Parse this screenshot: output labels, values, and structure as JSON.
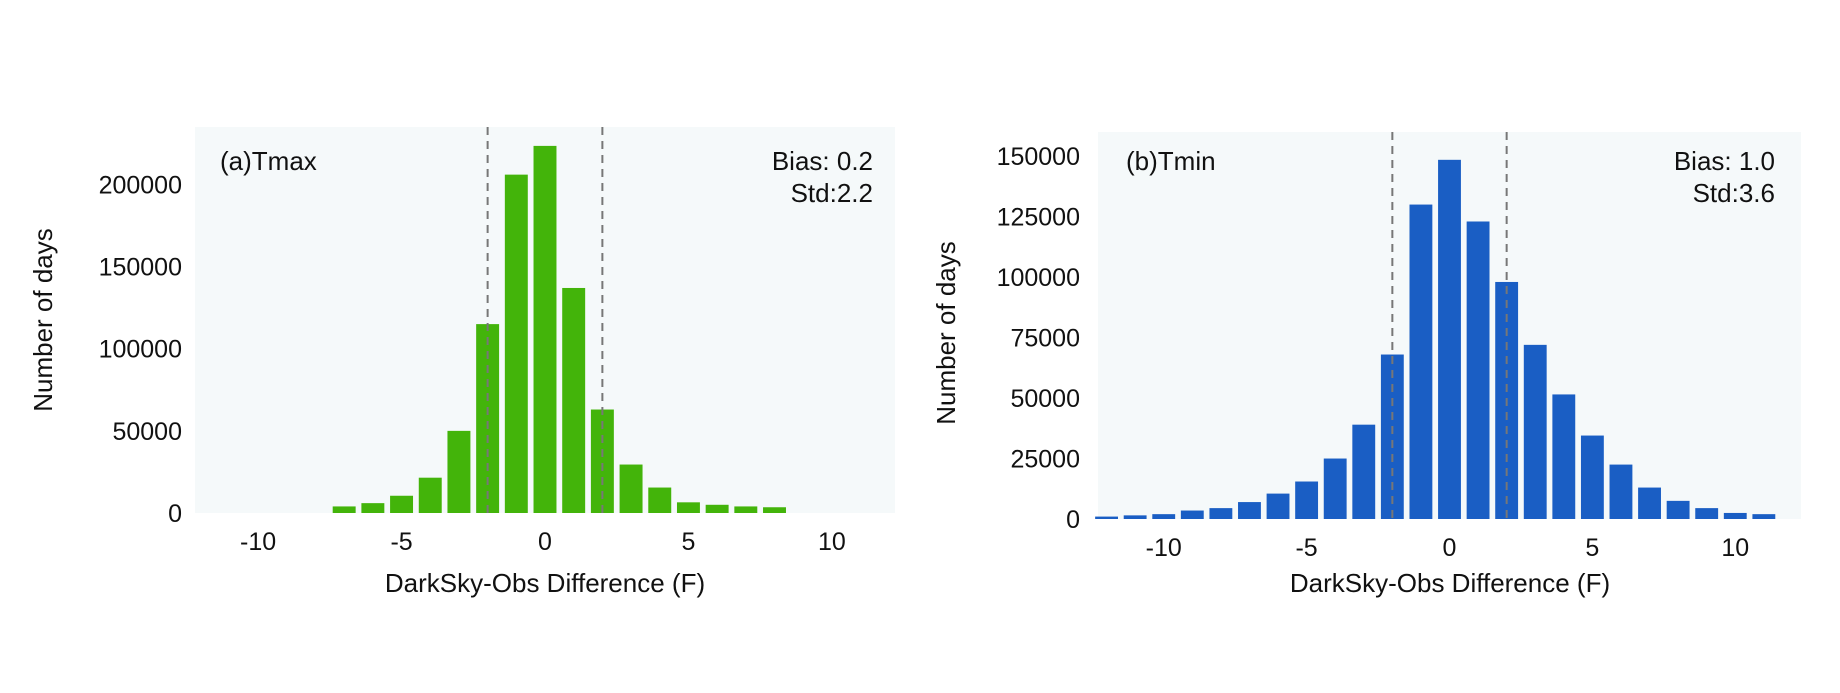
{
  "chart_data": [
    {
      "type": "bar",
      "panel_label": "(a)Tmax",
      "xlabel": "DarkSky-Obs Difference (F)",
      "ylabel": "Number of days",
      "xlim": [
        -12.2,
        12.2
      ],
      "ylim": [
        0,
        235000
      ],
      "xticks": [
        -10,
        -5,
        0,
        5,
        10
      ],
      "xtick_labels": [
        "-10",
        "-5",
        "0",
        "5",
        "10"
      ],
      "yticks": [
        0,
        50000,
        100000,
        150000,
        200000
      ],
      "ytick_labels": [
        "0",
        "50000",
        "100000",
        "150000",
        "200000"
      ],
      "bin_width": 1,
      "x": [
        -7,
        -6,
        -5,
        -4,
        -3,
        -2,
        -1,
        0,
        1,
        2,
        3,
        4,
        5,
        6,
        7,
        8
      ],
      "values": [
        4000,
        6000,
        10500,
        21500,
        50000,
        115000,
        206000,
        223500,
        137000,
        63000,
        29500,
        15500,
        6500,
        5000,
        4000,
        3500
      ],
      "bar_color": "#43b40a",
      "background_color": "#f5f9fa",
      "dashed_lines_x": [
        -2,
        2
      ],
      "grid": false,
      "annotations": {
        "bias": "Bias: 0.2",
        "std": "Std:2.2"
      }
    },
    {
      "type": "bar",
      "panel_label": "(b)Tmin",
      "xlabel": "DarkSky-Obs Difference (F)",
      "ylabel": "Number of days",
      "xlim": [
        -12.3,
        12.3
      ],
      "ylim": [
        0,
        160000
      ],
      "xticks": [
        -10,
        -5,
        0,
        5,
        10
      ],
      "xtick_labels": [
        "-10",
        "-5",
        "0",
        "5",
        "10"
      ],
      "yticks": [
        0,
        25000,
        50000,
        75000,
        100000,
        125000,
        150000
      ],
      "ytick_labels": [
        "0",
        "25000",
        "50000",
        "75000",
        "100000",
        "125000",
        "150000"
      ],
      "bin_width": 1,
      "x": [
        -12,
        -11,
        -10,
        -9,
        -8,
        -7,
        -6,
        -5,
        -4,
        -3,
        -2,
        -1,
        0,
        1,
        2,
        3,
        4,
        5,
        6,
        7,
        8,
        9,
        10,
        11
      ],
      "values": [
        1000,
        1500,
        2000,
        3500,
        4500,
        7000,
        10500,
        15500,
        25000,
        39000,
        68000,
        130000,
        148500,
        123000,
        98000,
        72000,
        51500,
        34500,
        22500,
        13000,
        7500,
        4500,
        2500,
        2000
      ],
      "bar_color": "#1a5ec4",
      "background_color": "#f5f9fa",
      "dashed_lines_x": [
        -2,
        2
      ],
      "grid": false,
      "annotations": {
        "bias": "Bias: 1.0",
        "std": "Std:3.6"
      }
    }
  ]
}
